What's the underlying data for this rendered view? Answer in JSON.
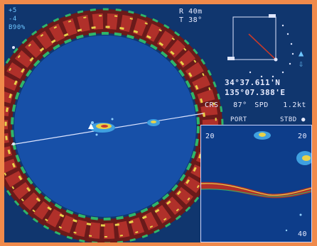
{
  "left_readout": {
    "line1": "+5",
    "line2": "-4",
    "line3": "B90%"
  },
  "range": {
    "r_label": "R",
    "r_value": "40m",
    "t_label": "T",
    "t_value": "38°"
  },
  "position": {
    "lat": "34°37.611'N",
    "lon": "135°07.388'E"
  },
  "course_speed": {
    "crs_label": "CRS",
    "crs_value": "87°",
    "spd_label": "SPD",
    "spd_value": "1.2kt"
  },
  "echo_panel": {
    "port_label": "PORT",
    "stbd_label": "STBD",
    "left_scale": "20",
    "right_scale": "20",
    "bottom_scale": "40"
  },
  "colors": {
    "frame": "#f08a4b",
    "background": "#10366e",
    "text": "#e8ecff",
    "arrow_up": "#6ec6ff",
    "arrow_down": "#6ec6ff"
  },
  "icons": {
    "arrow_up": "up-arrow-icon",
    "arrow_down": "down-arrow-icon",
    "stbd_marker": "circle-marker-icon"
  }
}
